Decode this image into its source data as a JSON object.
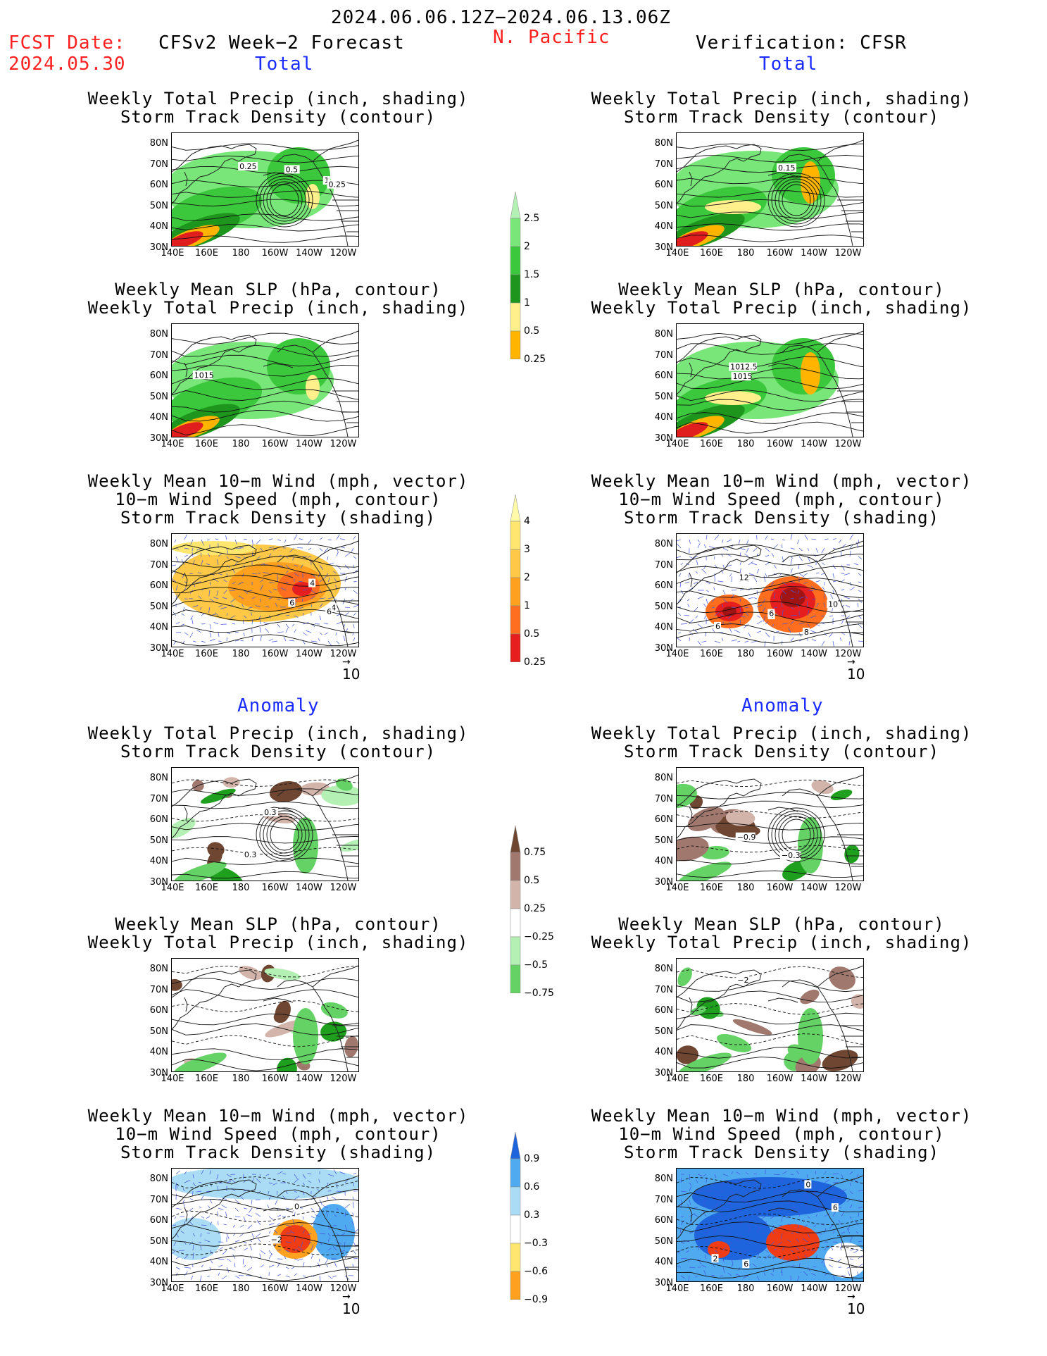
{
  "header": {
    "date_range": "2024.06.06.12Z−2024.06.13.06Z",
    "fcst_date_label": "FCST Date:",
    "fcst_date_value": "2024.05.30",
    "forecast_label": "CFSv2 Week−2 Forecast",
    "region": "N. Pacific",
    "verification_label": "Verification: CFSR"
  },
  "sections": {
    "total": "Total",
    "anomaly": "Anomaly"
  },
  "panel_titles": {
    "precip_storm": [
      "Weekly Total Precip (inch, shading)",
      "Storm Track Density (contour)"
    ],
    "slp_precip": [
      "Weekly Mean SLP (hPa, contour)",
      "Weekly Total Precip (inch, shading)"
    ],
    "wind_storm": [
      "Weekly Mean 10−m Wind (mph, vector)",
      "10−m Wind Speed (mph, contour)",
      "Storm Track Density (shading)"
    ]
  },
  "axes": {
    "lat_labels": [
      "80N",
      "70N",
      "60N",
      "50N",
      "40N",
      "30N"
    ],
    "lon_labels": [
      "140E",
      "160E",
      "180",
      "160W",
      "140W",
      "120W"
    ]
  },
  "vector_reference": "10",
  "contour_labels": {
    "r0_left": [
      "0.25",
      "1",
      "0.5",
      "0.25"
    ],
    "r0_right": [
      "0.15"
    ],
    "r1_left": [
      "1015"
    ],
    "r1_right": [
      "1015",
      "1012.5"
    ],
    "r2_left": [
      "6",
      "4",
      "4",
      "6"
    ],
    "r2_right": [
      "10",
      "8",
      "4",
      "6",
      "6",
      "12"
    ],
    "r3_left": [
      "0.3",
      "0.3"
    ],
    "r3_right": [
      "−0.6",
      "−0.9",
      "−0.3"
    ],
    "r4_right": [
      "−2"
    ],
    "r5_left": [
      "0",
      "−2"
    ],
    "r5_right": [
      "6",
      "6",
      "0",
      "2"
    ]
  },
  "colorbars": [
    {
      "id": "precip_total",
      "colors": [
        "#b4f0b4",
        "#78e678",
        "#3cc83c",
        "#1e961e",
        "#fff08c",
        "#ffb400",
        "#e01e1e"
      ],
      "labels": [
        "0.25",
        "0.5",
        "1",
        "1.5",
        "2",
        "2.5"
      ]
    },
    {
      "id": "storm_total",
      "colors": [
        "#fffaaa",
        "#ffe66e",
        "#ffc846",
        "#ffa01e",
        "#ff6e1e",
        "#e61e1e",
        "#a01414"
      ],
      "labels": [
        "0.25",
        "0.5",
        "1",
        "2",
        "3",
        "4"
      ]
    },
    {
      "id": "precip_anom",
      "colors": [
        "#6e4632",
        "#a0786e",
        "#d2b4aa",
        "#ffffff",
        "#b4f0b4",
        "#64d264",
        "#1ea01e"
      ],
      "labels": [
        "−0.75",
        "−0.5",
        "−0.25",
        "0.25",
        "0.5",
        "0.75"
      ]
    },
    {
      "id": "storm_anom",
      "colors": [
        "#1e64dc",
        "#50aaf0",
        "#aadcf5",
        "#ffffff",
        "#ffe66e",
        "#ffa01e",
        "#f03c14"
      ],
      "labels": [
        "−0.9",
        "−0.6",
        "−0.3",
        "0.3",
        "0.6",
        "0.9"
      ]
    }
  ],
  "chart_data": {
    "type": "map-panels",
    "panels": [
      {
        "id": "r0_left",
        "column": "CFSv2 Week−2 Forecast",
        "section": "Total",
        "fields": [
          "Weekly Total Precip (inch, shading)",
          "Storm Track Density (contour)"
        ]
      },
      {
        "id": "r0_right",
        "column": "Verification: CFSR",
        "section": "Total",
        "fields": [
          "Weekly Total Precip (inch, shading)",
          "Storm Track Density (contour)"
        ]
      },
      {
        "id": "r1_left",
        "column": "CFSv2 Week−2 Forecast",
        "section": "Total",
        "fields": [
          "Weekly Mean SLP (hPa, contour)",
          "Weekly Total Precip (inch, shading)"
        ]
      },
      {
        "id": "r1_right",
        "column": "Verification: CFSR",
        "section": "Total",
        "fields": [
          "Weekly Mean SLP (hPa, contour)",
          "Weekly Total Precip (inch, shading)"
        ]
      },
      {
        "id": "r2_left",
        "column": "CFSv2 Week−2 Forecast",
        "section": "Total",
        "fields": [
          "Weekly Mean 10−m Wind (mph, vector)",
          "10−m Wind Speed (mph, contour)",
          "Storm Track Density (shading)"
        ]
      },
      {
        "id": "r2_right",
        "column": "Verification: CFSR",
        "section": "Total",
        "fields": [
          "Weekly Mean 10−m Wind (mph, vector)",
          "10−m Wind Speed (mph, contour)",
          "Storm Track Density (shading)"
        ]
      },
      {
        "id": "r3_left",
        "column": "CFSv2 Week−2 Forecast",
        "section": "Anomaly",
        "fields": [
          "Weekly Total Precip (inch, shading)",
          "Storm Track Density (contour)"
        ]
      },
      {
        "id": "r3_right",
        "column": "Verification: CFSR",
        "section": "Anomaly",
        "fields": [
          "Weekly Total Precip (inch, shading)",
          "Storm Track Density (contour)"
        ]
      },
      {
        "id": "r4_left",
        "column": "CFSv2 Week−2 Forecast",
        "section": "Anomaly",
        "fields": [
          "Weekly Mean SLP (hPa, contour)",
          "Weekly Total Precip (inch, shading)"
        ]
      },
      {
        "id": "r4_right",
        "column": "Verification: CFSR",
        "section": "Anomaly",
        "fields": [
          "Weekly Mean SLP (hPa, contour)",
          "Weekly Total Precip (inch, shading)"
        ]
      },
      {
        "id": "r5_left",
        "column": "CFSv2 Week−2 Forecast",
        "section": "Anomaly",
        "fields": [
          "Weekly Mean 10−m Wind (mph, vector)",
          "10−m Wind Speed (mph, contour)",
          "Storm Track Density (shading)"
        ]
      },
      {
        "id": "r5_right",
        "column": "Verification: CFSR",
        "section": "Anomaly",
        "fields": [
          "Weekly Mean 10−m Wind (mph, vector)",
          "10−m Wind Speed (mph, contour)",
          "Storm Track Density (shading)"
        ]
      }
    ],
    "lat_ticks": [
      "80N",
      "70N",
      "60N",
      "50N",
      "40N",
      "30N"
    ],
    "lon_ticks": [
      "140E",
      "160E",
      "180",
      "160W",
      "140W",
      "120W"
    ]
  }
}
